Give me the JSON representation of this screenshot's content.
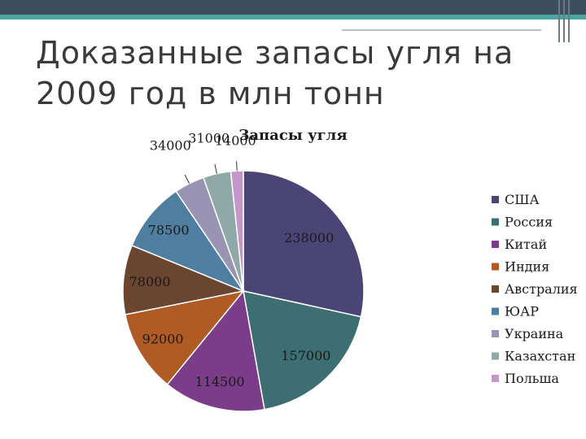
{
  "slide": {
    "title": "Доказанные запасы угля на 2009 год в млн тонн"
  },
  "chart_data": {
    "type": "pie",
    "title": "Запасы угля",
    "categories": [
      "США",
      "Россия",
      "Китай",
      "Индия",
      "Австралия",
      "ЮАР",
      "Украина",
      "Казахстан",
      "Польша"
    ],
    "values": [
      238000,
      157000,
      114500,
      92000,
      78000,
      78500,
      34000,
      31000,
      14000
    ],
    "colors": [
      "#4b4576",
      "#3d6e72",
      "#7b3c8a",
      "#b05a24",
      "#6a4530",
      "#4e7fa0",
      "#9a94b4",
      "#8fa8a8",
      "#c597c8"
    ],
    "legend_position": "right"
  }
}
